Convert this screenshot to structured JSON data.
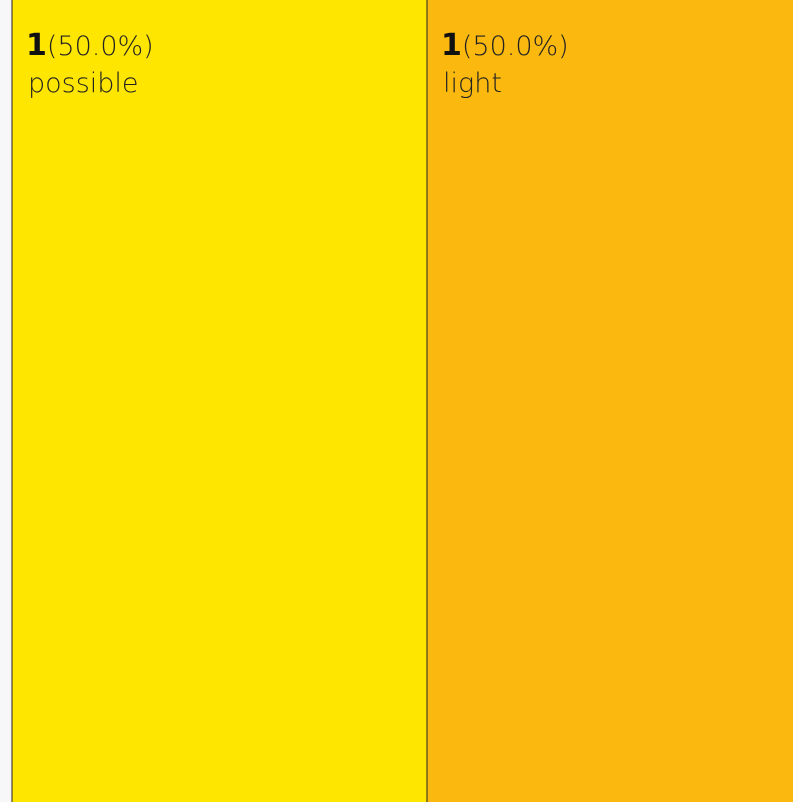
{
  "chart_data": {
    "type": "treemap",
    "categories": [
      "possible",
      "light"
    ],
    "values": [
      1,
      1
    ],
    "share_labels": [
      "(50.0%)",
      "(50.0%)"
    ],
    "colors": [
      "#FFE600",
      "#FBB80F"
    ]
  }
}
